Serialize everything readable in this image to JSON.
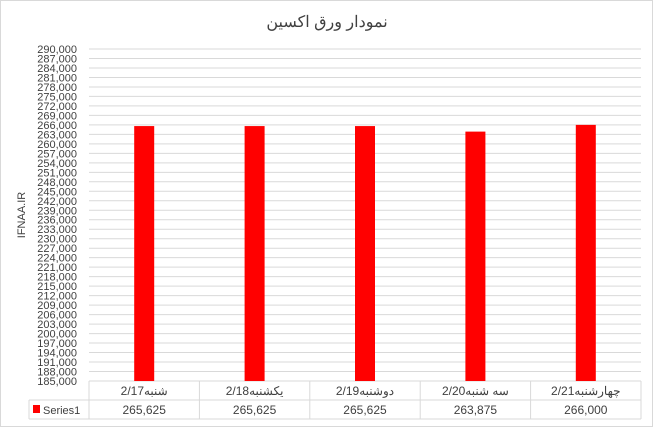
{
  "chart_data": {
    "type": "bar",
    "title": "نمودار ورق اکسین",
    "ylabel": "IFNAA.IR",
    "xlabel": "",
    "categories": [
      "2/17شنبه",
      "2/18یکشنبه",
      "2/19دوشنبه",
      "2/20سه شنبه",
      "2/21چهارشنبه"
    ],
    "series": [
      {
        "name": "Series1",
        "values": [
          265625,
          265625,
          265625,
          263875,
          266000
        ],
        "value_labels": [
          "265,625",
          "265,625",
          "265,625",
          "263,875",
          "266,000"
        ],
        "color": "#ff0000"
      }
    ],
    "ylim": [
      185000,
      290000
    ],
    "ytick_step": 3000,
    "grid": true,
    "legend": "data-table"
  }
}
